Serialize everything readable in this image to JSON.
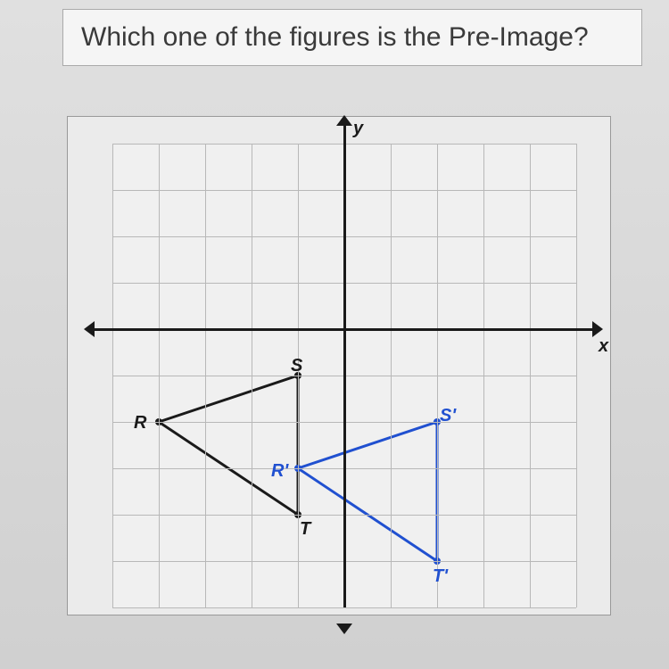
{
  "question": {
    "text": "Which one of the figures is the Pre-Image?"
  },
  "diagram": {
    "type": "coordinate-plane",
    "background_color": "#f0f0f0",
    "grid_color": "#b8b8b8",
    "axis_color": "#1a1a1a",
    "cellSize": 52,
    "gridCols": 10,
    "gridRows": 10,
    "xAxisRow": 4,
    "yAxisCol": 5,
    "axis_labels": {
      "x": "x",
      "y": "y"
    },
    "triangle_black": {
      "color": "#1a1a1a",
      "stroke_width": 3,
      "vertices": {
        "R": {
          "col": 1,
          "row": 6,
          "label": "R",
          "label_dx": -28,
          "label_dy": -10
        },
        "S": {
          "col": 4,
          "row": 5,
          "label": "S",
          "label_dx": -8,
          "label_dy": -22
        },
        "T": {
          "col": 4,
          "row": 8,
          "label": "T",
          "label_dx": 2,
          "label_dy": 5
        }
      }
    },
    "triangle_blue": {
      "color": "#2050d0",
      "stroke_width": 3,
      "vertices": {
        "Rp": {
          "col": 4,
          "row": 7,
          "label": "R'",
          "label_dx": -30,
          "label_dy": -8
        },
        "Sp": {
          "col": 7,
          "row": 6,
          "label": "S'",
          "label_dx": 3,
          "label_dy": -18
        },
        "Tp": {
          "col": 7,
          "row": 9,
          "label": "T'",
          "label_dx": -5,
          "label_dy": 6
        }
      }
    }
  }
}
